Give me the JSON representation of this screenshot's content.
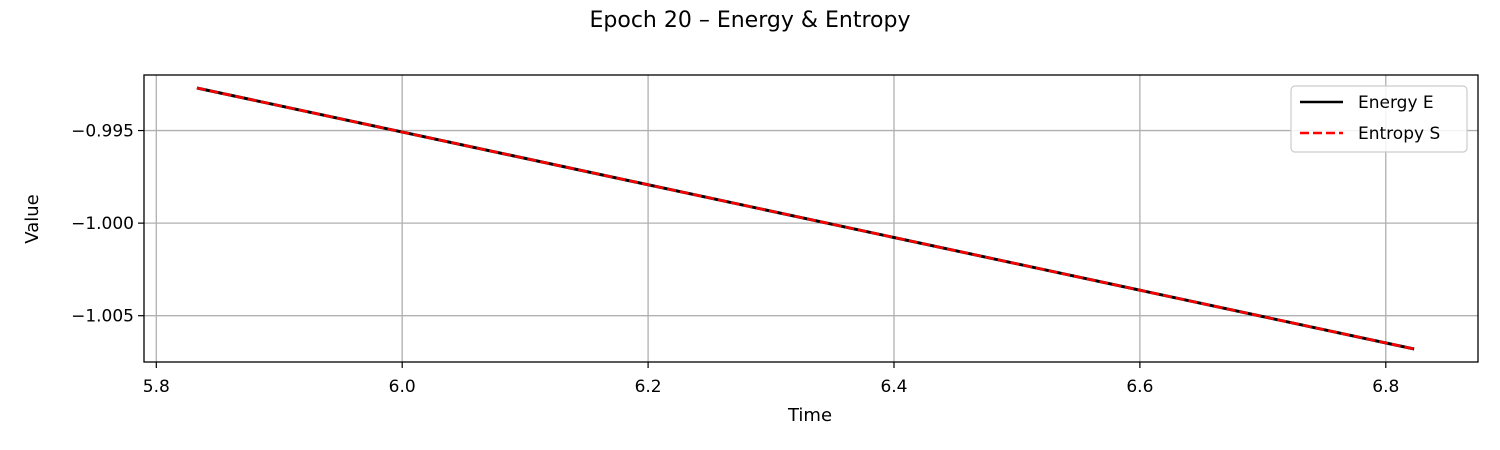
{
  "chart_data": {
    "type": "line",
    "title": "Epoch 20 – Energy & Entropy",
    "xlabel": "Time",
    "ylabel": "Value",
    "xlim": [
      5.79,
      6.875
    ],
    "ylim": [
      -1.0075,
      -0.992
    ],
    "x_ticks": [
      5.8,
      6.0,
      6.2,
      6.4,
      6.6,
      6.8
    ],
    "x_tick_labels": [
      "5.8",
      "6.0",
      "6.2",
      "6.4",
      "6.6",
      "6.8"
    ],
    "y_ticks": [
      -0.995,
      -1.0,
      -1.005
    ],
    "y_tick_labels": [
      "−0.995",
      "−1.000",
      "−1.005"
    ],
    "grid": true,
    "legend_position": "top-right",
    "series": [
      {
        "name": "Energy E",
        "color": "#000000",
        "style": "solid",
        "x": [
          5.833,
          6.823
        ],
        "y": [
          -0.9927,
          -1.0068
        ]
      },
      {
        "name": "Entropy S",
        "color": "#ff0000",
        "style": "dashed",
        "x": [
          5.833,
          6.823
        ],
        "y": [
          -0.9927,
          -1.0068
        ]
      }
    ]
  }
}
